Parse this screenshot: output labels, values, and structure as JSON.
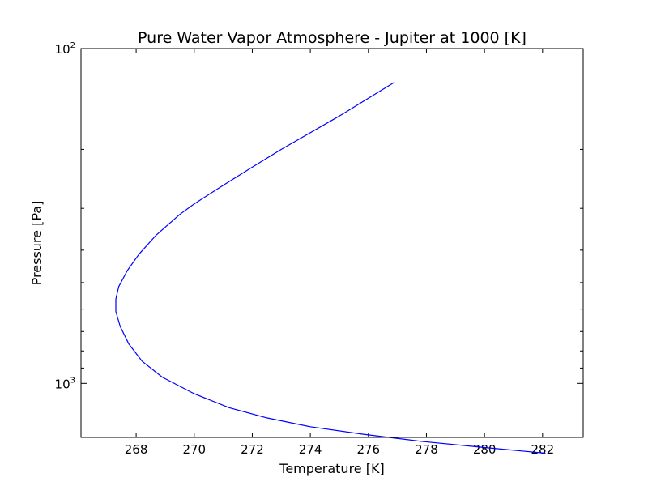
{
  "chart_data": {
    "type": "line",
    "title": "Pure Water Vapor Atmosphere - Jupiter at 1000 [K]",
    "xlabel": "Temperature [K]",
    "ylabel": "Pressure [Pa]",
    "xlim": [
      266.1,
      283.4
    ],
    "ylim": [
      1450,
      100
    ],
    "y_scale": "log",
    "y_inverted": true,
    "grid": false,
    "line_color": "#0000ff",
    "x_ticks": [
      {
        "value": 268,
        "label": "268"
      },
      {
        "value": 270,
        "label": "270"
      },
      {
        "value": 272,
        "label": "272"
      },
      {
        "value": 274,
        "label": "274"
      },
      {
        "value": 276,
        "label": "276"
      },
      {
        "value": 278,
        "label": "278"
      },
      {
        "value": 280,
        "label": "280"
      },
      {
        "value": 282,
        "label": "282"
      }
    ],
    "y_major_ticks": [
      {
        "value": 100,
        "label_base": "10",
        "label_exp": "2"
      },
      {
        "value": 1000,
        "label_base": "10",
        "label_exp": "3"
      }
    ],
    "y_minor_ticks": [
      200,
      300,
      400,
      500,
      600,
      700,
      800,
      900
    ],
    "series": [
      {
        "x": [
          276.9,
          275.0,
          273.0,
          272.0,
          271.0,
          270.0,
          269.5,
          268.7,
          268.1,
          267.7,
          267.4,
          267.3,
          267.3,
          267.45,
          267.75,
          268.2,
          268.9,
          270.0,
          271.2,
          272.5,
          274.0,
          275.8,
          277.8,
          280.0,
          282.1
        ],
        "y": [
          126,
          159,
          200,
          226,
          256,
          291,
          313,
          360,
          411,
          460,
          514,
          560,
          610,
          676,
          763,
          858,
          958,
          1074,
          1182,
          1268,
          1347,
          1418,
          1489,
          1555,
          1616
        ]
      }
    ]
  }
}
